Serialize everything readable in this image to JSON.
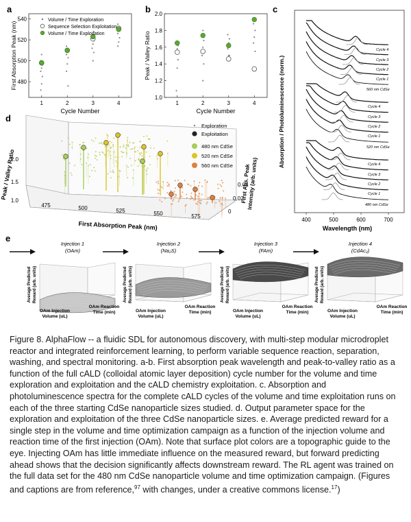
{
  "figure": {
    "panel_a": {
      "letter": "a",
      "ylabel": "First Absorption Peak (nm)",
      "xlabel": "Cycle Number",
      "legend": [
        "Volume / Time Exploration",
        "Sequence Selection Exploitation",
        "Volume / Time Exploitation"
      ]
    },
    "panel_b": {
      "letter": "b",
      "ylabel": "Peak / Valley Ratio",
      "xlabel": "Cycle Number"
    },
    "panel_c": {
      "letter": "c",
      "ylabel": "Absorption / Photoluminescence (norm.)",
      "xlabel": "Wavelength (nm)",
      "groups": [
        {
          "cycles": [
            "Cycle 4",
            "Cycle 3",
            "Cycle 2",
            "Cycle 1"
          ],
          "seed": "560 nm CdSe"
        },
        {
          "cycles": [
            "Cycle 4",
            "Cycle 3",
            "Cycle 2",
            "Cycle 1"
          ],
          "seed": "520 nm CdSe"
        },
        {
          "cycles": [
            "Cycle 4",
            "Cycle 3",
            "Cycle 2",
            "Cycle 1"
          ],
          "seed": "480 nm CdSe"
        }
      ]
    },
    "panel_d": {
      "letter": "d",
      "ylabel": "Peak / Valley Ratio",
      "xlabel": "First Absorption Peak (nm)",
      "zlabel_1": "First Abs. Peak",
      "zlabel_2": "Intensity (arb. units)",
      "legend": [
        "Exploration",
        "Exploitation",
        "480 nm CdSe",
        "520 nm CdSe",
        "560 nm CdSe"
      ],
      "colors": {
        "c480": "#a8cc5a",
        "c520": "#dcc428",
        "c560": "#e0813a"
      }
    },
    "panel_e": {
      "letter": "e",
      "injections": [
        {
          "title": "Injection 1",
          "sub": "(OAm)"
        },
        {
          "title": "Injection 2",
          "sub": "(Na₂S)"
        },
        {
          "title": "Injection 3",
          "sub": "(FAm)"
        },
        {
          "title": "Injection 4",
          "sub": "(CdAc₂)"
        }
      ],
      "zlabel_1": "Average Predicted",
      "zlabel_2": "Reward (arb. units)",
      "xlabel_1": "OAm Injection",
      "xlabel_2": "Volume (uL)",
      "ylabel_1": "OAm Reaction",
      "ylabel_2": "Time (min)"
    }
  },
  "caption": {
    "text": "Figure 8. AlphaFlow -- a fluidic SDL for autonomous discovery, with multi-step modular microdroplet reactor and integrated reinforcement learning, to perform variable sequence reaction, separation, washing, and spectral monitoring. a-b. First absorption peak wavelength and peak-to-valley ratio as a function of the full cALD (colloidal atomic layer deposition) cycle number for the volume and time exploration and exploitation and the cALD chemistry exploitation. c. Absorption and photoluminescence spectra for the complete cALD cycles of the volume and time exploitation runs on each of the three starting CdSe nanoparticle sizes studied. d. Output parameter space for the exploration and exploitation of the three CdSe nanoparticle sizes. e. Average predicted reward for a single step in the volume and time optimization campaign as a function of the injection volume and reaction time of the first injection (OAm). Note that surface plot colors are a topographic guide to the eye. Injecting OAm has little immediate influence on the measured reward, but forward predicting ahead shows that the decision significantly affects downstream reward. The RL agent was trained on the full data set for the 480 nm CdSe nanoparticle volume and time optimization campaign. (Figures and captions are from reference,",
    "ref1": "97",
    "mid": " with changes, under a creative commons license.",
    "ref2": "17",
    "end": ")"
  },
  "chart_data": [
    {
      "type": "scatter",
      "panel": "a",
      "xlabel": "Cycle Number",
      "ylabel": "First Absorption Peak (nm)",
      "xlim": [
        0.5,
        4.5
      ],
      "ylim": [
        465,
        545
      ],
      "xticks": [
        1,
        2,
        3,
        4
      ],
      "yticks": [
        480,
        500,
        520,
        540
      ],
      "series": [
        {
          "name": "Volume / Time Exploration",
          "x": [
            1,
            1,
            1,
            1,
            1,
            1,
            1,
            1,
            2,
            2,
            2,
            2,
            2,
            2,
            2,
            2,
            3,
            3,
            3,
            3,
            3,
            3,
            3,
            3,
            4,
            4,
            4,
            4,
            4,
            4,
            4
          ],
          "y": [
            472,
            478,
            485,
            490,
            493,
            496,
            500,
            506,
            476,
            490,
            497,
            503,
            506,
            508,
            511,
            514,
            500,
            508,
            512,
            516,
            519,
            522,
            525,
            528,
            514,
            518,
            522,
            526,
            529,
            532,
            535
          ]
        },
        {
          "name": "Sequence Selection Exploitation",
          "x": [
            1,
            2,
            3,
            4
          ],
          "y": [
            498,
            510,
            521,
            531
          ]
        },
        {
          "name": "Volume / Time Exploitation",
          "x": [
            1,
            2,
            3,
            4
          ],
          "y": [
            498,
            510,
            523,
            530
          ]
        }
      ]
    },
    {
      "type": "scatter",
      "panel": "b",
      "xlabel": "Cycle Number",
      "ylabel": "Peak / Valley Ratio",
      "xlim": [
        0.5,
        4.5
      ],
      "ylim": [
        1.0,
        2.0
      ],
      "xticks": [
        1,
        2,
        3,
        4
      ],
      "yticks": [
        1.0,
        1.2,
        1.4,
        1.6,
        1.8,
        2.0
      ],
      "series": [
        {
          "name": "Volume / Time Exploration",
          "x": [
            1,
            1,
            1,
            1,
            1,
            1,
            1,
            2,
            2,
            2,
            2,
            2,
            2,
            2,
            3,
            3,
            3,
            3,
            3,
            3,
            4,
            4,
            4,
            4,
            4
          ],
          "y": [
            1.08,
            1.35,
            1.45,
            1.52,
            1.58,
            1.62,
            1.66,
            1.2,
            1.4,
            1.5,
            1.6,
            1.68,
            1.75,
            1.8,
            1.5,
            1.58,
            1.65,
            1.7,
            1.75,
            1.5,
            1.55,
            1.65,
            1.72,
            1.8,
            1.88
          ]
        },
        {
          "name": "Sequence Selection Exploitation",
          "x": [
            1,
            2,
            3,
            4
          ],
          "y": [
            1.54,
            1.55,
            1.46,
            1.34
          ]
        },
        {
          "name": "Volume / Time Exploitation",
          "x": [
            1,
            2,
            3,
            4
          ],
          "y": [
            1.65,
            1.74,
            1.62,
            1.93
          ]
        }
      ]
    }
  ]
}
